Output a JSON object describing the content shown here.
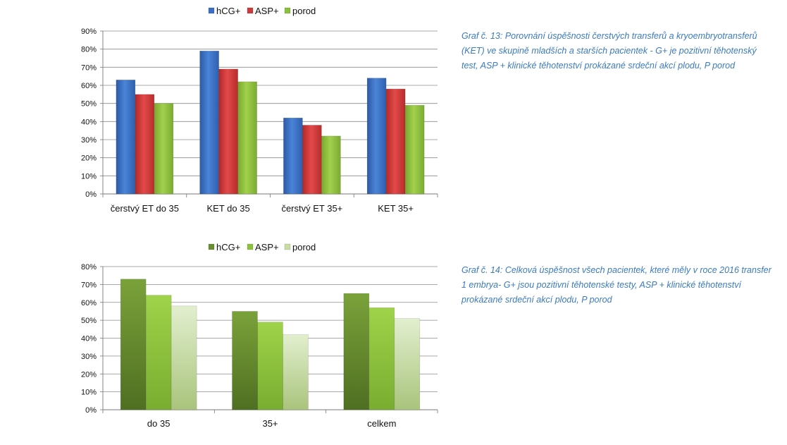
{
  "captions": {
    "chart1": "Graf č. 13: Porovnání úspěšnosti čerstvých transferů a kryoembryotransferů (KET) ve skupině mladších a starších pacientek - G+ je pozitivní těhotenský test, ASP + klinické těhotenství prokázané srdeční akcí plodu, P porod",
    "chart2": "Graf č. 14: Celková úspěšnost všech pacientek, které měly v roce 2016 transfer 1 embrya- G+ jsou pozitivní těhotenské testy, ASP + klinické těhotenství prokázané srdeční akcí plodu, P porod"
  },
  "colors": {
    "chart1": [
      "#3a6fc4",
      "#d03a3a",
      "#8dbf3e"
    ],
    "chart2": [
      "#6b8f30",
      "#8fc23c",
      "#c8dca4"
    ]
  },
  "chart_data": [
    {
      "type": "bar",
      "categories": [
        "čerstvý ET do 35",
        "KET do 35",
        "čerstvý ET 35+",
        "KET 35+"
      ],
      "series": [
        {
          "name": "hCG+",
          "values": [
            63,
            79,
            42,
            64
          ]
        },
        {
          "name": "ASP+",
          "values": [
            55,
            69,
            38,
            58
          ]
        },
        {
          "name": "porod",
          "values": [
            50,
            62,
            32,
            49
          ]
        }
      ],
      "ylim": [
        0,
        90
      ],
      "yticks": [
        "0%",
        "10%",
        "20%",
        "30%",
        "40%",
        "50%",
        "60%",
        "70%",
        "80%",
        "90%"
      ],
      "grid": true,
      "legend": "top"
    },
    {
      "type": "bar",
      "categories": [
        "do 35",
        "35+",
        "celkem"
      ],
      "series": [
        {
          "name": "hCG+",
          "values": [
            73,
            55,
            65
          ]
        },
        {
          "name": "ASP+",
          "values": [
            64,
            49,
            57
          ]
        },
        {
          "name": "porod",
          "values": [
            58,
            42,
            51
          ]
        }
      ],
      "ylim": [
        0,
        80
      ],
      "yticks": [
        "0%",
        "10%",
        "20%",
        "30%",
        "40%",
        "50%",
        "60%",
        "70%",
        "80%"
      ],
      "grid": true,
      "legend": "top"
    }
  ]
}
